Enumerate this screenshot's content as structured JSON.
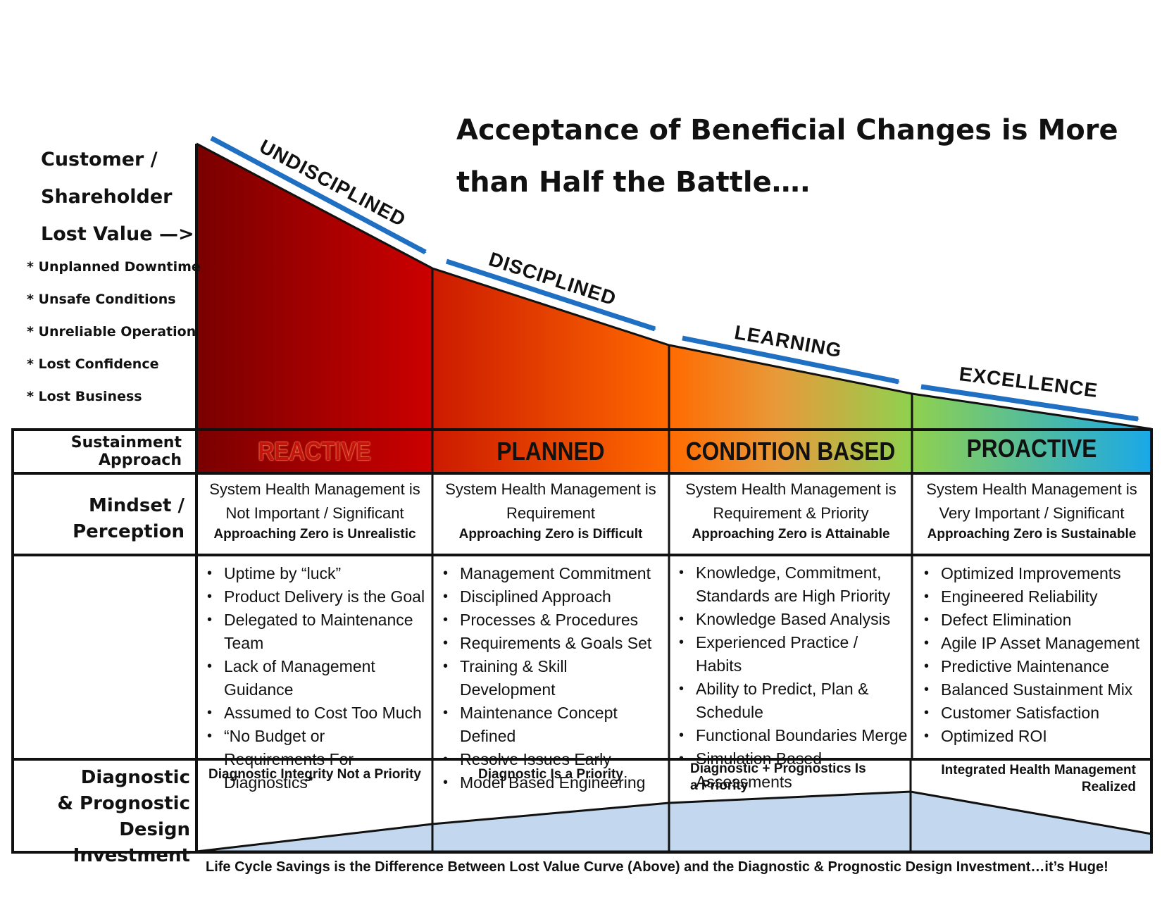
{
  "title": {
    "line1": "Acceptance of Beneficial Changes is More",
    "line2": "than Half the Battle…."
  },
  "lost_value": {
    "heading": [
      "Customer /",
      "Shareholder",
      "Lost Value  —>"
    ],
    "items": [
      "* Unplanned Downtime",
      "* Unsafe Conditions",
      "* Unreliable Operation",
      "* Lost Confidence",
      "* Lost Business"
    ]
  },
  "stages": [
    "UNDISCIPLINED",
    "DISCIPLINED",
    "LEARNING",
    "EXCELLENCE"
  ],
  "row_labels": {
    "approach": [
      "Sustainment",
      "Approach"
    ],
    "mindset": [
      "Mindset /",
      "Perception"
    ],
    "investment": [
      "Diagnostic",
      "& Prognostic",
      "Design Investment"
    ]
  },
  "columns": [
    {
      "approach": "REACTIVE",
      "mindset": [
        "System Health Management is",
        "Not Important / Significant"
      ],
      "mindset_sub": "Approaching Zero is Unrealistic",
      "bullets": [
        "Uptime by “luck”",
        "Product Delivery is the Goal",
        "Delegated to Maintenance Team",
        "Lack of Management Guidance",
        "Assumed to Cost Too Much",
        "“No Budget or Requirements For Diagnostics”"
      ],
      "diagnostic": "Diagnostic Integrity Not a Priority"
    },
    {
      "approach": "PLANNED",
      "mindset": [
        "System Health Management is",
        "Requirement"
      ],
      "mindset_sub": "Approaching Zero is Difficult",
      "bullets": [
        "Management Commitment",
        "Disciplined Approach",
        "Processes & Procedures",
        "Requirements & Goals Set",
        "Training & Skill Development",
        "Maintenance Concept Defined",
        "Resolve Issues Early",
        "Model Based Engineering"
      ],
      "diagnostic": "Diagnostic Is a Priority"
    },
    {
      "approach": "CONDITION BASED",
      "mindset": [
        "System Health Management is",
        "Requirement & Priority"
      ],
      "mindset_sub": "Approaching Zero is Attainable",
      "bullets": [
        "Knowledge, Commitment, Standards are High Priority",
        "Knowledge Based Analysis",
        "Experienced Practice / Habits",
        "Ability to Predict, Plan & Schedule",
        "Functional Boundaries Merge",
        "Simulation Based Assessments"
      ],
      "diagnostic": "Diagnostic + Prognostics Is a Priority"
    },
    {
      "approach": "PROACTIVE",
      "mindset": [
        "System Health Management is",
        "Very  Important / Significant"
      ],
      "mindset_sub": "Approaching Zero is Sustainable",
      "bullets": [
        "Optimized Improvements",
        "Engineered Reliability",
        "Defect Elimination",
        "Agile IP Asset Management",
        "Predictive Maintenance",
        "Balanced Sustainment Mix",
        "Customer Satisfaction",
        "Optimized ROI"
      ],
      "diagnostic": "Integrated Health Management Realized"
    }
  ],
  "footer": "Life Cycle Savings is the Difference Between Lost Value Curve (Above) and the Diagnostic & Prognostic Design Investment…it’s Huge!",
  "colors": {
    "arrow": "#1f6fc2",
    "investment_fill": "#c3d8ee",
    "reactive_text": "#c2130f",
    "dark_red": "#7a0000",
    "red": "#cc0000",
    "orange": "#ff6a00",
    "green": "#8fd14f",
    "cyan": "#19a8e8"
  }
}
